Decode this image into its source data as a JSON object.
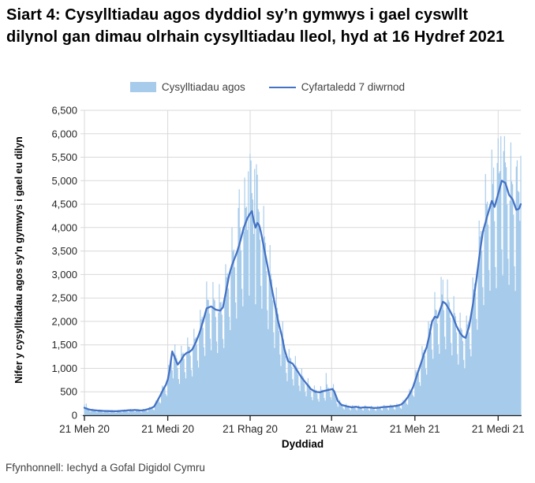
{
  "title": "Siart 4: Cysylltiadau agos dyddiol sy’n gymwys i gael cyswllt dilynol gan dimau olrhain cysylltiadau lleol, hyd at 16 Hydref 2021",
  "legend": {
    "bars_label": "Cysylltiadau agos",
    "line_label": "Cyfartaledd 7 diwrnod"
  },
  "y_axis": {
    "label": "Nifer y cysylltiadau agos sy'n gymwys i gael eu dilyn",
    "tick_labels": [
      "0",
      "500",
      "1,000",
      "1,500",
      "2,000",
      "2,500",
      "3,000",
      "3,500",
      "4,000",
      "4,500",
      "5,000",
      "5,500",
      "6,000",
      "6,500"
    ]
  },
  "x_axis": {
    "label": "Dyddiad"
  },
  "footer": "Ffynhonnell: Iechyd a Gofal Digidol Cymru",
  "colors": {
    "bar": "#A7CBEA",
    "line": "#4472C4",
    "grid": "#D9D9D9",
    "axis": "#1a1a1a",
    "tick_text": "#262626"
  },
  "chart_data": {
    "type": "bar",
    "overlay": "line",
    "title": "Siart 4: Cysylltiadau agos dyddiol sy’n gymwys i gael cyswllt dilynol gan dimau olrhain cysylltiadau lleol, hyd at 16 Hydref 2021",
    "xlabel": "Dyddiad",
    "ylabel": "Nifer y cysylltiadau agos sy'n gymwys i gael eu dilyn",
    "ylim": [
      0,
      6500
    ],
    "y_ticks": [
      0,
      500,
      1000,
      1500,
      2000,
      2500,
      3000,
      3500,
      4000,
      4500,
      5000,
      5500,
      6000,
      6500
    ],
    "grid": "on",
    "legend_position": "top-center",
    "x_unit": "day",
    "x_ticks": [
      {
        "label": "21 Meh 20",
        "day": 0
      },
      {
        "label": "21 Medi 20",
        "day": 92
      },
      {
        "label": "21 Rhag 20",
        "day": 183
      },
      {
        "label": "21 Maw 21",
        "day": 273
      },
      {
        "label": "21 Meh 21",
        "day": 365
      },
      {
        "label": "21 Medi 21",
        "day": 457
      }
    ],
    "max_bar": 5950,
    "series": [
      {
        "name": "Cysylltiadau agos",
        "type": "bar",
        "color": "#A7CBEA",
        "derive_from_line": {
          "weekday_factors": [
            0.58,
            1.03,
            1.18,
            1.1,
            1.04,
            0.97,
            0.7
          ],
          "jitter_cycle": [
            1.03,
            0.97,
            1.05,
            0.99,
            1.04,
            0.96,
            1.0,
            1.02,
            0.95,
            1.06,
            0.98,
            1.03,
            0.97,
            1.01
          ],
          "spike_overrides": {
            "0": 235,
            "2": 250,
            "171": 4815,
            "181": 5200,
            "183": 5570,
            "184": 5430,
            "188": 5250,
            "190": 5350,
            "267": 900,
            "394": 2950,
            "396": 2890,
            "452": 5280,
            "456": 5380,
            "460": 5950,
            "463": 5630,
            "477": 5300,
            "482": 5530
          }
        }
      },
      {
        "name": "Cyfartaledd 7 diwrnod",
        "type": "line",
        "color": "#4472C4",
        "daily_values": [
          160,
          150,
          145,
          140,
          130,
          125,
          120,
          115,
          113,
          111,
          109,
          106,
          104,
          102,
          100,
          99,
          98,
          97,
          96,
          95,
          93,
          92,
          91,
          91,
          90,
          90,
          89,
          89,
          88,
          88,
          87,
          87,
          86,
          86,
          85,
          85,
          86,
          88,
          89,
          91,
          92,
          94,
          95,
          96,
          98,
          99,
          101,
          102,
          104,
          105,
          106,
          107,
          108,
          109,
          110,
          111,
          112,
          110,
          108,
          107,
          105,
          103,
          102,
          100,
          104,
          108,
          111,
          115,
          120,
          125,
          130,
          136,
          142,
          149,
          155,
          165,
          175,
          185,
          220,
          252,
          286,
          320,
          357,
          393,
          430,
          470,
          510,
          550,
          583,
          617,
          650,
          705,
          760,
          855,
          950,
          1087,
          1223,
          1360,
          1313,
          1267,
          1220,
          1173,
          1127,
          1080,
          1103,
          1127,
          1150,
          1183,
          1215,
          1248,
          1280,
          1297,
          1313,
          1330,
          1337,
          1343,
          1350,
          1367,
          1383,
          1400,
          1438,
          1475,
          1513,
          1550,
          1600,
          1650,
          1700,
          1750,
          1813,
          1875,
          1938,
          2000,
          2070,
          2140,
          2210,
          2280,
          2288,
          2296,
          2304,
          2312,
          2320,
          2306,
          2292,
          2278,
          2264,
          2250,
          2246,
          2242,
          2238,
          2234,
          2230,
          2253,
          2277,
          2300,
          2400,
          2500,
          2600,
          2700,
          2800,
          2900,
          3000,
          3067,
          3133,
          3200,
          3250,
          3300,
          3350,
          3400,
          3450,
          3500,
          3567,
          3633,
          3700,
          3775,
          3850,
          3925,
          4000,
          4050,
          4100,
          4150,
          4200,
          4233,
          4267,
          4300,
          4325,
          4350,
          4250,
          4150,
          4075,
          4000,
          4050,
          4100,
          4075,
          4050,
          3975,
          3900,
          3800,
          3700,
          3600,
          3500,
          3400,
          3300,
          3200,
          3100,
          3000,
          2900,
          2800,
          2700,
          2600,
          2500,
          2400,
          2300,
          2200,
          2100,
          2000,
          1925,
          1850,
          1775,
          1700,
          1600,
          1500,
          1400,
          1338,
          1275,
          1213,
          1150,
          1140,
          1130,
          1120,
          1110,
          1100,
          1070,
          1040,
          1010,
          980,
          950,
          920,
          890,
          860,
          830,
          800,
          776,
          752,
          728,
          704,
          680,
          656,
          632,
          608,
          584,
          560,
          548,
          536,
          524,
          512,
          500,
          498,
          496,
          494,
          492,
          490,
          496,
          502,
          508,
          514,
          520,
          524,
          528,
          532,
          536,
          540,
          545,
          550,
          555,
          560,
          530,
          500,
          450,
          400,
          350,
          300,
          280,
          260,
          240,
          220,
          215,
          210,
          205,
          200,
          195,
          190,
          186,
          182,
          178,
          174,
          170,
          172,
          174,
          176,
          178,
          180,
          176,
          172,
          168,
          164,
          160,
          162,
          164,
          166,
          168,
          170,
          169,
          168,
          167,
          166,
          165,
          163,
          161,
          159,
          157,
          155,
          156,
          157,
          158,
          159,
          160,
          163,
          166,
          169,
          172,
          175,
          176,
          177,
          178,
          179,
          180,
          182,
          184,
          186,
          188,
          190,
          192,
          194,
          196,
          198,
          200,
          206,
          212,
          218,
          224,
          230,
          247,
          263,
          280,
          305,
          330,
          355,
          380,
          413,
          447,
          480,
          520,
          560,
          600,
          660,
          720,
          780,
          837,
          893,
          950,
          1007,
          1063,
          1120,
          1180,
          1240,
          1300,
          1350,
          1400,
          1450,
          1533,
          1617,
          1700,
          1800,
          1900,
          2000,
          2033,
          2067,
          2100,
          2093,
          2087,
          2080,
          2137,
          2193,
          2250,
          2307,
          2363,
          2420,
          2407,
          2393,
          2380,
          2348,
          2315,
          2283,
          2250,
          2213,
          2175,
          2138,
          2100,
          2050,
          2000,
          1950,
          1900,
          1863,
          1825,
          1788,
          1750,
          1727,
          1703,
          1680,
          1670,
          1660,
          1650,
          1713,
          1775,
          1838,
          1900,
          2013,
          2125,
          2238,
          2350,
          2488,
          2625,
          2763,
          2900,
          3050,
          3200,
          3350,
          3500,
          3633,
          3767,
          3900,
          3970,
          4040,
          4110,
          4180,
          4250,
          4314,
          4378,
          4442,
          4506,
          4570,
          4527,
          4483,
          4440,
          4510,
          4580,
          4650,
          4720,
          4790,
          4860,
          4930,
          5000,
          4988,
          4975,
          4963,
          4950,
          4888,
          4825,
          4763,
          4700,
          4675,
          4650,
          4625,
          4600,
          4545,
          4490,
          4435,
          4380,
          4387,
          4393,
          4400,
          4450,
          4500
        ]
      }
    ]
  }
}
